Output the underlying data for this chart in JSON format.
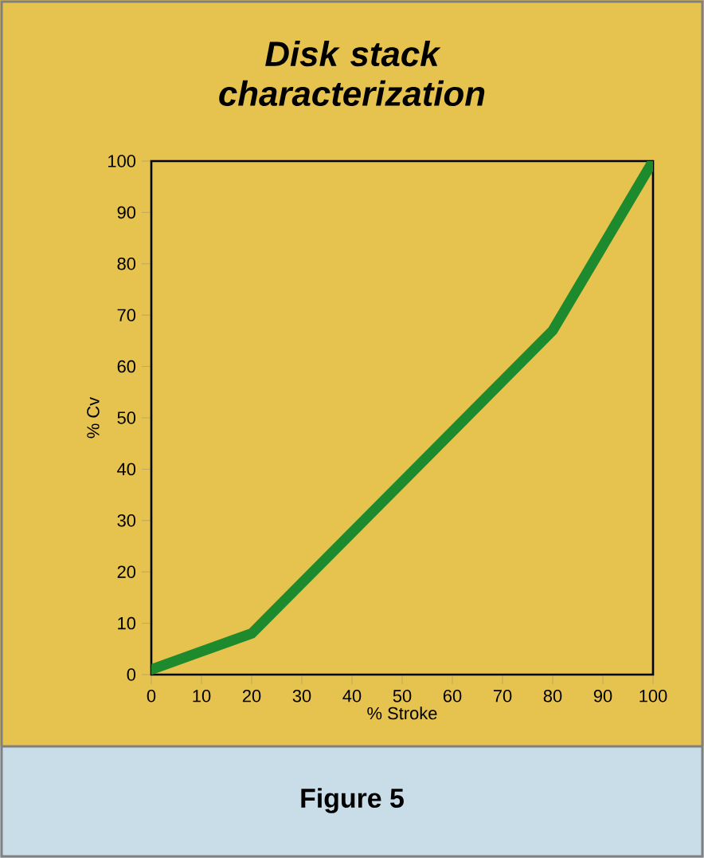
{
  "chart_data": {
    "type": "line",
    "title": "*Disk stack characterization*",
    "xlabel": "% Stroke",
    "ylabel": "% Cv",
    "x": [
      0,
      20,
      80,
      100
    ],
    "series": [
      {
        "color": "#1e8a2e",
        "values": [
          1,
          8,
          67,
          100
        ]
      }
    ],
    "xlim": [
      0,
      100
    ],
    "ylim": [
      0,
      100
    ],
    "xticks": [
      0,
      10,
      20,
      30,
      40,
      50,
      60,
      70,
      80,
      90,
      100
    ],
    "yticks": [
      0,
      10,
      20,
      30,
      40,
      50,
      60,
      70,
      80,
      90,
      100
    ],
    "marker": "none",
    "line_style": "solid",
    "annotations": [
      "Figure 5"
    ]
  }
}
